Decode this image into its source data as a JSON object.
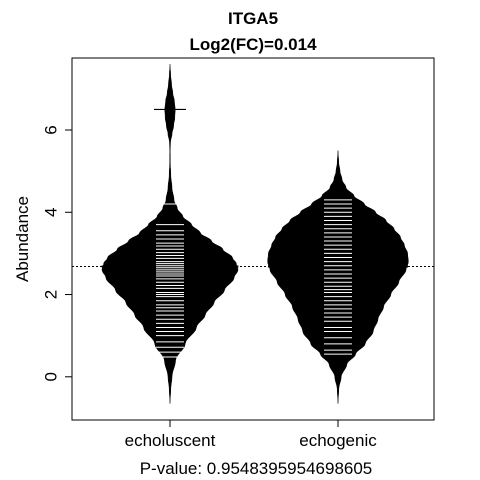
{
  "chart_data": {
    "type": "beanplot",
    "title": "ITGA5",
    "subtitle": "Log2(FC)=0.014",
    "xlabel": "P-value: 0.9548395954698605",
    "ylabel": "Abundance",
    "ylim": [
      -1.05,
      7.75
    ],
    "yticks": [
      0,
      2,
      4,
      6
    ],
    "overall_line": 2.68,
    "categories": [
      "echoluscent",
      "echogenic"
    ],
    "beans": [
      {
        "name": "echoluscent",
        "mean": 2.68,
        "density": [
          [
            -0.65,
            0.0
          ],
          [
            -0.3,
            0.01
          ],
          [
            0.0,
            0.025
          ],
          [
            0.4,
            0.07
          ],
          [
            0.8,
            0.19
          ],
          [
            1.2,
            0.33
          ],
          [
            1.5,
            0.44
          ],
          [
            1.8,
            0.55
          ],
          [
            2.1,
            0.68
          ],
          [
            2.4,
            0.8
          ],
          [
            2.6,
            0.85
          ],
          [
            2.75,
            0.83
          ],
          [
            2.9,
            0.78
          ],
          [
            3.1,
            0.66
          ],
          [
            3.3,
            0.52
          ],
          [
            3.5,
            0.38
          ],
          [
            3.7,
            0.27
          ],
          [
            3.9,
            0.16
          ],
          [
            4.1,
            0.09
          ],
          [
            4.3,
            0.05
          ],
          [
            4.6,
            0.025
          ],
          [
            4.9,
            0.01
          ],
          [
            5.2,
            0.004
          ],
          [
            5.5,
            0.003
          ],
          [
            5.7,
            0.006
          ],
          [
            5.9,
            0.025
          ],
          [
            6.1,
            0.045
          ],
          [
            6.3,
            0.06
          ],
          [
            6.5,
            0.065
          ],
          [
            6.7,
            0.055
          ],
          [
            6.9,
            0.035
          ],
          [
            7.1,
            0.02
          ],
          [
            7.35,
            0.008
          ],
          [
            7.6,
            0.0
          ]
        ],
        "points": [
          0.48,
          0.6,
          0.72,
          0.85,
          1.0,
          1.1,
          1.2,
          1.3,
          1.4,
          1.5,
          1.6,
          1.68,
          1.75,
          1.85,
          1.95,
          2.0,
          2.05,
          2.15,
          2.22,
          2.3,
          2.38,
          2.45,
          2.5,
          2.55,
          2.6,
          2.65,
          2.7,
          2.75,
          2.8,
          2.88,
          2.95,
          3.02,
          3.1,
          3.18,
          3.25,
          3.35,
          3.45,
          3.55,
          3.7,
          4.2,
          6.5
        ]
      },
      {
        "name": "echogenic",
        "mean": 2.68,
        "density": [
          [
            -0.65,
            0.0
          ],
          [
            -0.3,
            0.01
          ],
          [
            0.0,
            0.04
          ],
          [
            0.3,
            0.11
          ],
          [
            0.55,
            0.22
          ],
          [
            0.8,
            0.34
          ],
          [
            1.1,
            0.44
          ],
          [
            1.4,
            0.5
          ],
          [
            1.7,
            0.57
          ],
          [
            2.0,
            0.66
          ],
          [
            2.3,
            0.76
          ],
          [
            2.6,
            0.85
          ],
          [
            2.8,
            0.88
          ],
          [
            3.0,
            0.87
          ],
          [
            3.2,
            0.83
          ],
          [
            3.4,
            0.78
          ],
          [
            3.6,
            0.7
          ],
          [
            3.8,
            0.6
          ],
          [
            4.0,
            0.47
          ],
          [
            4.2,
            0.33
          ],
          [
            4.4,
            0.2
          ],
          [
            4.6,
            0.1
          ],
          [
            4.8,
            0.05
          ],
          [
            5.0,
            0.025
          ],
          [
            5.2,
            0.01
          ],
          [
            5.5,
            0.0
          ]
        ],
        "points": [
          0.55,
          0.65,
          0.8,
          0.95,
          1.1,
          1.2,
          1.35,
          1.45,
          1.55,
          1.65,
          1.75,
          1.85,
          1.95,
          2.05,
          2.12,
          2.2,
          2.3,
          2.4,
          2.5,
          2.6,
          2.7,
          2.8,
          2.9,
          3.0,
          3.1,
          3.2,
          3.3,
          3.4,
          3.5,
          3.6,
          3.7,
          3.8,
          3.9,
          4.0,
          4.1,
          4.2,
          4.3
        ]
      }
    ]
  }
}
